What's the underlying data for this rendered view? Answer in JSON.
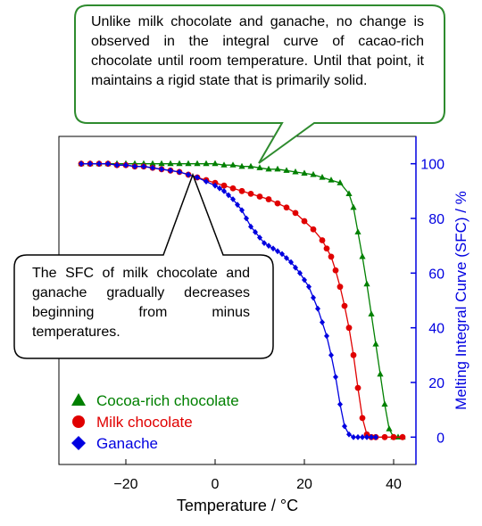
{
  "chart_data": {
    "type": "scatter",
    "xlabel": "Temperature / °C",
    "ylabel": "Melting  Integral Curve (SFC)  / %",
    "xlim": [
      -35,
      45
    ],
    "ylim": [
      -10,
      110
    ],
    "x_ticks": [
      "−20",
      "0",
      "20",
      "40"
    ],
    "y_ticks": [
      "0",
      "20",
      "40",
      "60",
      "80",
      "100"
    ],
    "legend_position": "bottom-left",
    "series": [
      {
        "name": "Cocoa-rich chocolate",
        "color": "#008000",
        "marker": "triangle",
        "x": [
          -30,
          -28,
          -26,
          -24,
          -22,
          -20,
          -18,
          -16,
          -14,
          -12,
          -10,
          -8,
          -6,
          -4,
          -2,
          0,
          2,
          4,
          6,
          8,
          10,
          12,
          14,
          16,
          18,
          20,
          22,
          24,
          26,
          28,
          30,
          31,
          32,
          33,
          34,
          35,
          36,
          37,
          38,
          39,
          40,
          41,
          42
        ],
        "y": [
          100,
          100,
          100,
          100,
          100,
          100,
          100,
          100,
          100,
          100,
          100,
          100,
          100,
          100,
          100,
          100,
          99.5,
          99.5,
          99,
          99,
          98.5,
          98,
          98,
          97.5,
          97,
          96.5,
          96,
          95,
          94,
          93,
          89,
          84,
          75,
          66,
          56,
          45,
          34,
          23,
          12,
          3,
          0,
          0,
          0
        ]
      },
      {
        "name": "Milk chocolate",
        "color": "#e00000",
        "marker": "circle",
        "x": [
          -30,
          -28,
          -26,
          -24,
          -22,
          -20,
          -18,
          -16,
          -14,
          -12,
          -10,
          -8,
          -6,
          -4,
          -2,
          0,
          2,
          4,
          6,
          8,
          10,
          12,
          14,
          16,
          18,
          20,
          22,
          24,
          25,
          26,
          27,
          28,
          29,
          30,
          31,
          32,
          33,
          34,
          35,
          36,
          38,
          40,
          42
        ],
        "y": [
          100,
          100,
          100,
          100,
          99.5,
          99.5,
          99,
          99,
          98.5,
          98,
          97.5,
          97,
          96,
          95,
          94,
          93,
          92,
          91,
          90,
          89,
          88,
          87,
          85.5,
          84,
          82,
          79,
          76,
          72,
          69,
          66,
          61,
          55,
          48,
          40,
          30,
          18,
          7,
          1,
          0,
          0,
          0,
          0,
          0
        ]
      },
      {
        "name": "Ganache",
        "color": "#0000e0",
        "marker": "diamond",
        "x": [
          -30,
          -28,
          -26,
          -24,
          -22,
          -20,
          -18,
          -16,
          -14,
          -12,
          -10,
          -8,
          -6,
          -4,
          -2,
          0,
          1,
          2,
          3,
          4,
          5,
          6,
          7,
          8,
          9,
          10,
          11,
          12,
          13,
          14,
          15,
          16,
          17,
          18,
          19,
          20,
          21,
          22,
          23,
          24,
          25,
          26,
          27,
          28,
          29,
          30,
          31,
          32,
          33,
          34,
          35,
          36
        ],
        "y": [
          100,
          100,
          100,
          100,
          99.5,
          99.5,
          99,
          99,
          98.5,
          98,
          97.5,
          97,
          96,
          95,
          93.5,
          92,
          91,
          90,
          88.5,
          87,
          85,
          83,
          80,
          77,
          75,
          73,
          71,
          70,
          69,
          68,
          67,
          65.5,
          64,
          62,
          60,
          57.5,
          55,
          51,
          47,
          42,
          37,
          30,
          22,
          12,
          4,
          1,
          0,
          0,
          0,
          0,
          0,
          0
        ]
      }
    ]
  },
  "annotations": {
    "callout_top": "Unlike milk chocolate and ganache, no change is observed in the integral curve of cacao-rich chocolate until room temperature. Until that point, it maintains a rigid state that is primarily solid.",
    "callout_left": "The SFC of milk chocolate and ganache gradually decreases beginning from minus temperatures."
  },
  "colors": {
    "callout_border": "#2e8b2e",
    "right_axis": "#0000e0"
  }
}
